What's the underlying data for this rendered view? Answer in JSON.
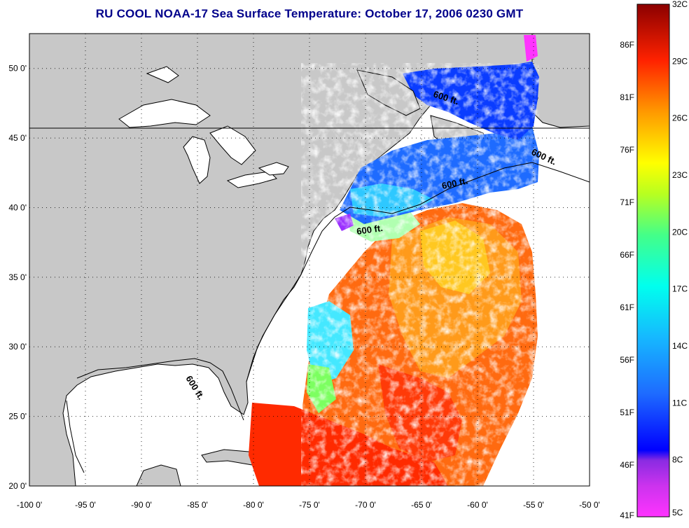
{
  "title": "RU COOL  NOAA-17  Sea Surface Temperature:  October 17, 2006 0230 GMT",
  "map": {
    "lon_ticks": [
      "-100 0'",
      "-95 0'",
      "-90 0'",
      "-85 0'",
      "-80 0'",
      "-75 0'",
      "-70 0'",
      "-65 0'",
      "-60 0'",
      "-55 0'",
      "-50 0'"
    ],
    "lat_ticks": [
      "20 0'",
      "25 0'",
      "30 0'",
      "35 0'",
      "40 0'",
      "45 0'",
      "50 0'"
    ],
    "lon_range": [
      -100,
      -50
    ],
    "lat_range": [
      20,
      52.5
    ],
    "contour_label": "600 ft.",
    "colors": {
      "land": "#c8c8c8",
      "no_data": "#ffffff",
      "coast": "#000000"
    }
  },
  "colorbar": {
    "celsius_labels": [
      "32C",
      "29C",
      "26C",
      "23C",
      "20C",
      "17C",
      "14C",
      "11C",
      "8C",
      "5C"
    ],
    "fahrenheit_labels": [
      "86F",
      "81F",
      "76F",
      "71F",
      "66F",
      "61F",
      "56F",
      "51F",
      "46F",
      "41F"
    ],
    "range_c": [
      5,
      32
    ]
  }
}
